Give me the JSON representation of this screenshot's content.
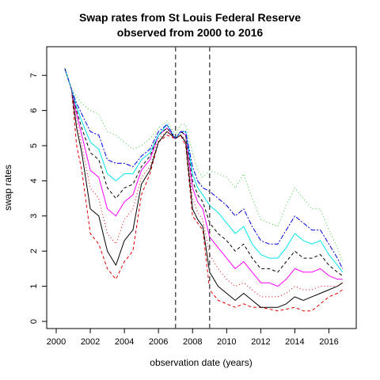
{
  "chart_data": {
    "type": "line",
    "title": "Swap rates from St Louis Federal Reserve",
    "subtitle": "observed from 2000 to 2016",
    "xlabel": "observation date (years)",
    "ylabel": "swap rates",
    "xlim": [
      2000,
      2017
    ],
    "ylim": [
      0,
      7.5
    ],
    "x_ticks": [
      2000,
      2002,
      2004,
      2006,
      2008,
      2010,
      2012,
      2014,
      2016
    ],
    "y_ticks": [
      0,
      1,
      2,
      3,
      4,
      5,
      6,
      7
    ],
    "vlines": [
      2007.0,
      2009.0
    ],
    "grid": false,
    "legend": "none",
    "x": [
      2000.5,
      2000.9,
      2001.2,
      2001.5,
      2002.0,
      2002.5,
      2003.0,
      2003.5,
      2004.0,
      2004.5,
      2005.0,
      2005.5,
      2006.0,
      2006.5,
      2007.0,
      2007.3,
      2007.6,
      2008.0,
      2008.3,
      2008.6,
      2009.0,
      2009.5,
      2010.0,
      2010.5,
      2011.0,
      2011.5,
      2012.0,
      2012.5,
      2013.0,
      2013.5,
      2014.0,
      2014.5,
      2015.0,
      2015.5,
      2016.0,
      2016.5,
      2016.8
    ],
    "series": [
      {
        "color": "#dd0000",
        "dash": "4,3",
        "values": [
          7.2,
          6.6,
          5.0,
          4.3,
          2.5,
          2.2,
          1.5,
          1.2,
          1.7,
          2.0,
          3.6,
          4.2,
          5.1,
          5.3,
          5.2,
          5.3,
          5.0,
          3.0,
          2.8,
          2.6,
          0.9,
          0.6,
          0.5,
          0.4,
          0.5,
          0.4,
          0.4,
          0.35,
          0.3,
          0.35,
          0.4,
          0.3,
          0.3,
          0.5,
          0.7,
          0.8,
          0.9
        ]
      },
      {
        "color": "#000000",
        "dash": "",
        "values": [
          7.2,
          6.6,
          5.5,
          4.8,
          3.2,
          3.0,
          2.0,
          1.6,
          2.3,
          2.6,
          3.9,
          4.3,
          5.1,
          5.4,
          5.2,
          5.3,
          5.1,
          3.2,
          2.9,
          2.7,
          1.4,
          1.0,
          0.8,
          0.6,
          0.8,
          0.6,
          0.4,
          0.4,
          0.4,
          0.5,
          0.7,
          0.6,
          0.7,
          0.8,
          0.9,
          1.0,
          1.1
        ]
      },
      {
        "color": "#dd0000",
        "dash": "1,3",
        "values": [
          7.2,
          6.6,
          5.7,
          5.0,
          3.8,
          3.5,
          2.5,
          2.2,
          2.9,
          3.2,
          4.1,
          4.4,
          5.2,
          5.4,
          5.2,
          5.3,
          5.2,
          3.5,
          3.1,
          2.9,
          1.9,
          1.5,
          1.2,
          1.0,
          1.1,
          0.9,
          0.7,
          0.7,
          0.7,
          0.8,
          1.0,
          0.9,
          0.9,
          1.0,
          1.0,
          1.0,
          1.1
        ]
      },
      {
        "color": "#ff00ff",
        "dash": "",
        "values": [
          7.2,
          6.6,
          5.9,
          5.3,
          4.3,
          4.1,
          3.2,
          3.0,
          3.4,
          3.6,
          4.3,
          4.6,
          5.3,
          5.5,
          5.2,
          5.4,
          5.3,
          3.8,
          3.4,
          3.2,
          2.4,
          2.1,
          1.8,
          1.5,
          1.7,
          1.4,
          1.1,
          1.1,
          1.0,
          1.2,
          1.5,
          1.4,
          1.4,
          1.5,
          1.3,
          1.2,
          1.2
        ]
      },
      {
        "color": "#000000",
        "dash": "4,3",
        "values": [
          7.2,
          6.6,
          6.0,
          5.5,
          4.8,
          4.6,
          3.8,
          3.5,
          3.8,
          3.9,
          4.4,
          4.7,
          5.3,
          5.5,
          5.2,
          5.4,
          5.3,
          4.0,
          3.6,
          3.4,
          2.8,
          2.5,
          2.3,
          2.0,
          2.2,
          1.8,
          1.5,
          1.5,
          1.4,
          1.7,
          2.0,
          1.8,
          1.8,
          1.9,
          1.6,
          1.4,
          1.3
        ]
      },
      {
        "color": "#00e5ee",
        "dash": "",
        "values": [
          7.2,
          6.6,
          6.1,
          5.7,
          5.1,
          4.9,
          4.2,
          4.0,
          4.2,
          4.2,
          4.6,
          4.8,
          5.3,
          5.6,
          5.2,
          5.4,
          5.4,
          4.2,
          3.8,
          3.6,
          3.3,
          3.1,
          2.8,
          2.5,
          2.7,
          2.2,
          1.9,
          1.8,
          1.8,
          2.1,
          2.5,
          2.3,
          2.2,
          2.3,
          1.9,
          1.6,
          1.4
        ]
      },
      {
        "color": "#0000dd",
        "dash": "6,2,2,2",
        "values": [
          7.2,
          6.6,
          6.2,
          5.9,
          5.4,
          5.3,
          4.6,
          4.5,
          4.5,
          4.4,
          4.7,
          4.9,
          5.4,
          5.6,
          5.2,
          5.4,
          5.4,
          4.4,
          4.0,
          3.8,
          3.7,
          3.5,
          3.3,
          3.0,
          3.2,
          2.7,
          2.3,
          2.2,
          2.2,
          2.6,
          3.0,
          2.8,
          2.6,
          2.6,
          2.2,
          1.8,
          1.5
        ]
      },
      {
        "color": "#33cc33",
        "dash": "1,3",
        "values": [
          7.2,
          6.6,
          6.4,
          6.2,
          6.0,
          5.9,
          5.4,
          5.3,
          5.1,
          4.9,
          5.0,
          5.2,
          5.5,
          5.7,
          5.3,
          5.6,
          5.6,
          4.8,
          4.3,
          4.1,
          4.3,
          4.2,
          4.1,
          3.8,
          4.2,
          3.5,
          2.9,
          2.8,
          2.7,
          3.3,
          3.8,
          3.5,
          3.2,
          3.2,
          2.6,
          2.1,
          1.7
        ]
      }
    ]
  }
}
